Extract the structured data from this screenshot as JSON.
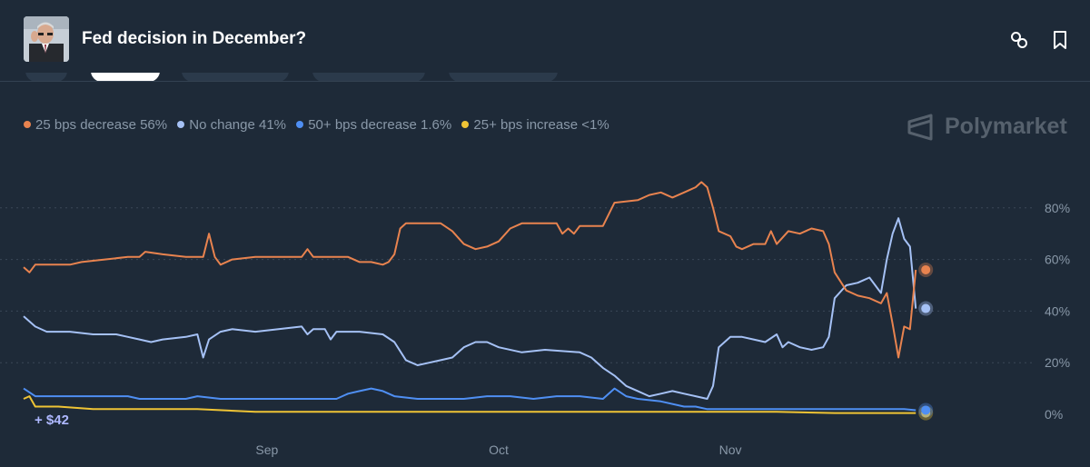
{
  "header": {
    "title": "Fed decision in December?",
    "avatar_alt": "market image",
    "link_icon": "link-icon",
    "bookmark_icon": "bookmark-icon"
  },
  "brand": {
    "name": "Polymarket"
  },
  "profit_label": "+ $42",
  "colors": {
    "background": "#1e2a38",
    "dec25": "#e8834f",
    "nochange": "#a5c1f5",
    "dec50": "#4f8ff3",
    "inc25": "#efc435",
    "grid": "#3a4757",
    "axis_text": "#8998a8"
  },
  "chart_data": {
    "type": "line",
    "title": "Fed decision in December?",
    "ylabel": "",
    "xlabel": "",
    "ylim": [
      0,
      100
    ],
    "yticks": [
      {
        "value": 0,
        "label": "0%"
      },
      {
        "value": 20,
        "label": "20%"
      },
      {
        "value": 40,
        "label": "40%"
      },
      {
        "value": 60,
        "label": "60%"
      },
      {
        "value": 80,
        "label": "80%"
      }
    ],
    "x_domain": [
      0,
      86
    ],
    "xticks": [
      {
        "value": 21,
        "label": "Sep"
      },
      {
        "value": 41,
        "label": "Oct"
      },
      {
        "value": 61,
        "label": "Nov"
      }
    ],
    "grid": true,
    "legend_position": "top-left",
    "series": [
      {
        "key": "dec25",
        "name": "25 bps decrease",
        "legend": "25 bps decrease 56%",
        "color": "#e8834f",
        "points": [
          [
            0,
            57
          ],
          [
            0.5,
            55
          ],
          [
            1,
            58
          ],
          [
            4,
            58
          ],
          [
            5,
            59
          ],
          [
            7,
            60
          ],
          [
            9,
            61
          ],
          [
            10,
            61
          ],
          [
            10.5,
            63
          ],
          [
            12,
            62
          ],
          [
            14,
            61
          ],
          [
            15.5,
            61
          ],
          [
            16,
            70
          ],
          [
            16.5,
            61
          ],
          [
            17,
            58
          ],
          [
            18,
            60
          ],
          [
            20,
            61
          ],
          [
            22,
            61
          ],
          [
            24,
            61
          ],
          [
            24.5,
            64
          ],
          [
            25,
            61
          ],
          [
            28,
            61
          ],
          [
            29,
            59
          ],
          [
            30,
            59
          ],
          [
            31,
            58
          ],
          [
            31.5,
            59
          ],
          [
            32,
            62
          ],
          [
            32.5,
            72
          ],
          [
            33,
            74
          ],
          [
            36,
            74
          ],
          [
            37,
            71
          ],
          [
            38,
            66
          ],
          [
            39,
            64
          ],
          [
            40,
            65
          ],
          [
            41,
            67
          ],
          [
            42,
            72
          ],
          [
            43,
            74
          ],
          [
            46,
            74
          ],
          [
            46.5,
            70
          ],
          [
            47,
            72
          ],
          [
            47.5,
            70
          ],
          [
            48,
            73
          ],
          [
            50,
            73
          ],
          [
            51,
            82
          ],
          [
            53,
            83
          ],
          [
            54,
            85
          ],
          [
            55,
            86
          ],
          [
            56,
            84
          ],
          [
            57,
            86
          ],
          [
            58,
            88
          ],
          [
            58.5,
            90
          ],
          [
            59,
            88
          ],
          [
            59.5,
            80
          ],
          [
            60,
            71
          ],
          [
            61,
            69
          ],
          [
            61.5,
            65
          ],
          [
            62,
            64
          ],
          [
            63,
            66
          ],
          [
            64,
            66
          ],
          [
            64.5,
            71
          ],
          [
            65,
            66
          ],
          [
            66,
            71
          ],
          [
            67,
            70
          ],
          [
            68,
            72
          ],
          [
            69,
            71
          ],
          [
            69.5,
            66
          ],
          [
            70,
            55
          ],
          [
            71,
            48
          ],
          [
            72,
            46
          ],
          [
            73,
            45
          ],
          [
            74,
            43
          ],
          [
            74.5,
            47
          ],
          [
            75,
            35
          ],
          [
            75.5,
            22
          ],
          [
            76,
            34
          ],
          [
            76.5,
            33
          ],
          [
            77,
            56
          ]
        ]
      },
      {
        "key": "nochange",
        "name": "No change",
        "legend": "No change 41%",
        "color": "#a5c1f5",
        "points": [
          [
            0,
            38
          ],
          [
            1,
            34
          ],
          [
            2,
            32
          ],
          [
            4,
            32
          ],
          [
            6,
            31
          ],
          [
            8,
            31
          ],
          [
            9,
            30
          ],
          [
            10,
            29
          ],
          [
            11,
            28
          ],
          [
            12,
            29
          ],
          [
            14,
            30
          ],
          [
            15,
            31
          ],
          [
            15.5,
            22
          ],
          [
            16,
            29
          ],
          [
            17,
            32
          ],
          [
            18,
            33
          ],
          [
            20,
            32
          ],
          [
            22,
            33
          ],
          [
            24,
            34
          ],
          [
            24.5,
            31
          ],
          [
            25,
            33
          ],
          [
            26,
            33
          ],
          [
            26.5,
            29
          ],
          [
            27,
            32
          ],
          [
            29,
            32
          ],
          [
            31,
            31
          ],
          [
            32,
            28
          ],
          [
            33,
            21
          ],
          [
            34,
            19
          ],
          [
            35,
            20
          ],
          [
            36,
            21
          ],
          [
            37,
            22
          ],
          [
            38,
            26
          ],
          [
            39,
            28
          ],
          [
            40,
            28
          ],
          [
            41,
            26
          ],
          [
            43,
            24
          ],
          [
            45,
            25
          ],
          [
            48,
            24
          ],
          [
            49,
            22
          ],
          [
            50,
            18
          ],
          [
            51,
            15
          ],
          [
            52,
            11
          ],
          [
            53,
            9
          ],
          [
            54,
            7
          ],
          [
            55,
            8
          ],
          [
            56,
            9
          ],
          [
            57,
            8
          ],
          [
            58,
            7
          ],
          [
            59,
            6
          ],
          [
            59.5,
            11
          ],
          [
            60,
            26
          ],
          [
            60.5,
            28
          ],
          [
            61,
            30
          ],
          [
            62,
            30
          ],
          [
            63,
            29
          ],
          [
            64,
            28
          ],
          [
            65,
            31
          ],
          [
            65.5,
            26
          ],
          [
            66,
            28
          ],
          [
            67,
            26
          ],
          [
            68,
            25
          ],
          [
            69,
            26
          ],
          [
            69.5,
            30
          ],
          [
            70,
            45
          ],
          [
            71,
            50
          ],
          [
            72,
            51
          ],
          [
            72.5,
            52
          ],
          [
            73,
            53
          ],
          [
            74,
            47
          ],
          [
            74.5,
            60
          ],
          [
            75,
            70
          ],
          [
            75.5,
            76
          ],
          [
            76,
            68
          ],
          [
            76.5,
            65
          ],
          [
            77,
            41
          ]
        ]
      },
      {
        "key": "dec50",
        "name": "50+ bps decrease",
        "legend": "50+ bps decrease 1.6%",
        "color": "#4f8ff3",
        "points": [
          [
            0,
            10
          ],
          [
            1,
            7
          ],
          [
            3,
            7
          ],
          [
            5,
            7
          ],
          [
            7,
            7
          ],
          [
            9,
            7
          ],
          [
            10,
            6
          ],
          [
            12,
            6
          ],
          [
            14,
            6
          ],
          [
            15,
            7
          ],
          [
            17,
            6
          ],
          [
            19,
            6
          ],
          [
            21,
            6
          ],
          [
            23,
            6
          ],
          [
            25,
            6
          ],
          [
            27,
            6
          ],
          [
            28,
            8
          ],
          [
            29,
            9
          ],
          [
            30,
            10
          ],
          [
            31,
            9
          ],
          [
            32,
            7
          ],
          [
            34,
            6
          ],
          [
            36,
            6
          ],
          [
            38,
            6
          ],
          [
            40,
            7
          ],
          [
            42,
            7
          ],
          [
            44,
            6
          ],
          [
            46,
            7
          ],
          [
            48,
            7
          ],
          [
            50,
            6
          ],
          [
            51,
            10
          ],
          [
            52,
            7
          ],
          [
            53,
            6
          ],
          [
            55,
            5
          ],
          [
            57,
            3
          ],
          [
            58,
            3
          ],
          [
            59,
            2
          ],
          [
            61,
            2
          ],
          [
            63,
            2
          ],
          [
            65,
            2
          ],
          [
            67,
            2
          ],
          [
            69,
            2
          ],
          [
            71,
            2
          ],
          [
            73,
            2
          ],
          [
            75,
            2
          ],
          [
            76,
            2
          ],
          [
            77,
            1.6
          ]
        ]
      },
      {
        "key": "inc25",
        "name": "25+ bps increase",
        "legend": "25+ bps increase <1%",
        "color": "#efc435",
        "points": [
          [
            0,
            6
          ],
          [
            0.5,
            7
          ],
          [
            1,
            3
          ],
          [
            3,
            3
          ],
          [
            6,
            2
          ],
          [
            9,
            2
          ],
          [
            12,
            2
          ],
          [
            15,
            2
          ],
          [
            20,
            1
          ],
          [
            25,
            1
          ],
          [
            30,
            1
          ],
          [
            35,
            1
          ],
          [
            40,
            1
          ],
          [
            45,
            1
          ],
          [
            50,
            1
          ],
          [
            55,
            1
          ],
          [
            60,
            1
          ],
          [
            65,
            1
          ],
          [
            70,
            0.5
          ],
          [
            77,
            0.5
          ]
        ]
      }
    ]
  }
}
